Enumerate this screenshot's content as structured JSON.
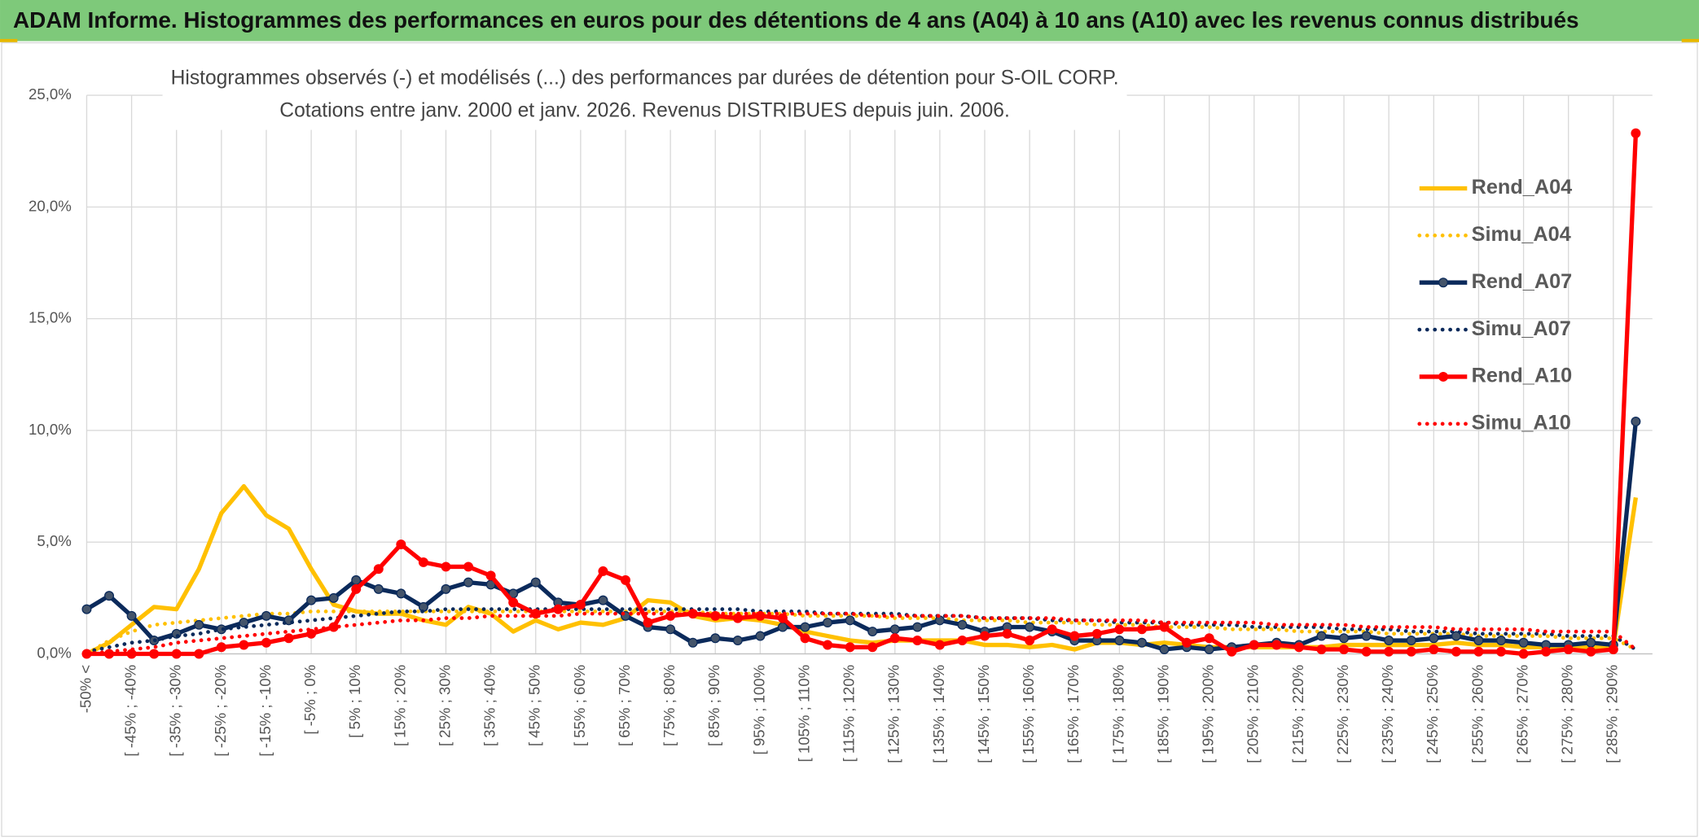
{
  "header": {
    "title": "ADAM Informe. Histogrammes des performances en euros pour des détentions de 4 ans (A04) à 10 ans (A10) avec les revenus connus distribués"
  },
  "chart_data": {
    "type": "line",
    "title": "Histogrammes observés (-) et modélisés (...) des performances par durées de détention pour S-OIL CORP.",
    "subtitle": "Cotations entre janv. 2000 et janv. 2026. Revenus DISTRIBUES depuis juin. 2006.",
    "categories": [
      "-50% <",
      null,
      "[ -45% ; -40%",
      null,
      "[ -35% ; -30%",
      null,
      "[ -25% ; -20%",
      null,
      "[ -15% ; -10%",
      null,
      "[ -5% ; 0%",
      null,
      "[ 5% ; 10%",
      null,
      "[ 15% ; 20%",
      null,
      "[ 25% ; 30%",
      null,
      "[ 35% ; 40%",
      null,
      "[ 45% ; 50%",
      null,
      "[ 55% ; 60%",
      null,
      "[ 65% ; 70%",
      null,
      "[ 75% ; 80%",
      null,
      "[ 85% ; 90%",
      null,
      "[ 95% ; 100%",
      null,
      "[ 105% ; 110%",
      null,
      "[ 115% ; 120%",
      null,
      "[ 125% ; 130%",
      null,
      "[ 135% ; 140%",
      null,
      "[ 145% ; 150%",
      null,
      "[ 155% ; 160%",
      null,
      "[ 165% ; 170%",
      null,
      "[ 175% ; 180%",
      null,
      "[ 185% ; 190%",
      null,
      "[ 195% ; 200%",
      null,
      "[ 205% ; 210%",
      null,
      "[ 215% ; 220%",
      null,
      "[ 225% ; 230%",
      null,
      "[ 235% ; 240%",
      null,
      "[ 245% ; 250%",
      null,
      "[ 255% ; 260%",
      null,
      "[ 265% ; 270%",
      null,
      "[ 275% ; 280%",
      null,
      "[ 285% ; 290%",
      null
    ],
    "series": [
      {
        "name": "Rend_A04",
        "color": "#ffc000",
        "style": "solid",
        "marker": false,
        "values": [
          0,
          0.5,
          1.3,
          2.1,
          2.0,
          3.8,
          6.3,
          7.5,
          6.2,
          5.6,
          3.8,
          2.2,
          1.9,
          1.8,
          1.8,
          1.5,
          1.3,
          2.1,
          1.8,
          1.0,
          1.5,
          1.1,
          1.4,
          1.3,
          1.6,
          2.4,
          2.3,
          1.7,
          1.5,
          1.6,
          1.5,
          1.3,
          1.0,
          0.8,
          0.6,
          0.5,
          0.6,
          0.6,
          0.6,
          0.6,
          0.4,
          0.4,
          0.3,
          0.4,
          0.2,
          0.5,
          0.5,
          0.4,
          0.5,
          0.4,
          0.3,
          0.3,
          0.3,
          0.3,
          0.3,
          0.3,
          0.4,
          0.4,
          0.4,
          0.4,
          0.4,
          0.5,
          0.4,
          0.4,
          0.3,
          0.3,
          0.3,
          0.3,
          0.3,
          7.0
        ]
      },
      {
        "name": "Simu_A04",
        "color": "#ffc000",
        "style": "dotted",
        "marker": false,
        "values": [
          0,
          0.6,
          1.0,
          1.3,
          1.4,
          1.5,
          1.6,
          1.7,
          1.8,
          1.8,
          1.9,
          1.9,
          1.9,
          1.9,
          1.9,
          1.9,
          1.9,
          1.9,
          1.9,
          1.9,
          1.9,
          1.9,
          1.9,
          1.9,
          1.9,
          1.9,
          1.9,
          1.9,
          1.8,
          1.8,
          1.8,
          1.8,
          1.7,
          1.7,
          1.7,
          1.7,
          1.6,
          1.6,
          1.6,
          1.5,
          1.5,
          1.5,
          1.4,
          1.4,
          1.4,
          1.3,
          1.3,
          1.3,
          1.2,
          1.2,
          1.2,
          1.1,
          1.1,
          1.1,
          1.0,
          1.0,
          1.0,
          1.0,
          0.9,
          0.9,
          0.9,
          0.9,
          0.8,
          0.8,
          0.8,
          0.8,
          0.7,
          0.7,
          0.7,
          0.2
        ]
      },
      {
        "name": "Rend_A07",
        "color": "#0b2a5b",
        "style": "solid",
        "marker": true,
        "values": [
          2.0,
          2.6,
          1.7,
          0.6,
          0.9,
          1.3,
          1.1,
          1.4,
          1.7,
          1.5,
          2.4,
          2.5,
          3.3,
          2.9,
          2.7,
          2.1,
          2.9,
          3.2,
          3.1,
          2.7,
          3.2,
          2.3,
          2.2,
          2.4,
          1.7,
          1.2,
          1.1,
          0.5,
          0.7,
          0.6,
          0.8,
          1.2,
          1.2,
          1.4,
          1.5,
          1.0,
          1.1,
          1.2,
          1.5,
          1.3,
          1.0,
          1.2,
          1.2,
          1.0,
          0.6,
          0.6,
          0.6,
          0.5,
          0.2,
          0.3,
          0.2,
          0.3,
          0.4,
          0.5,
          0.4,
          0.8,
          0.7,
          0.8,
          0.6,
          0.6,
          0.7,
          0.8,
          0.6,
          0.6,
          0.5,
          0.4,
          0.4,
          0.5,
          0.4,
          10.4
        ]
      },
      {
        "name": "Simu_A07",
        "color": "#0b2a5b",
        "style": "dotted",
        "marker": false,
        "values": [
          0.1,
          0.3,
          0.5,
          0.6,
          0.8,
          0.9,
          1.1,
          1.2,
          1.3,
          1.4,
          1.5,
          1.6,
          1.7,
          1.8,
          1.9,
          1.9,
          2.0,
          2.0,
          2.0,
          2.0,
          2.0,
          2.0,
          2.0,
          2.0,
          2.0,
          2.0,
          2.0,
          2.0,
          2.0,
          2.0,
          1.9,
          1.9,
          1.9,
          1.8,
          1.8,
          1.8,
          1.8,
          1.7,
          1.7,
          1.7,
          1.6,
          1.6,
          1.6,
          1.5,
          1.5,
          1.5,
          1.4,
          1.4,
          1.4,
          1.3,
          1.3,
          1.3,
          1.2,
          1.2,
          1.2,
          1.2,
          1.1,
          1.1,
          1.1,
          1.0,
          1.0,
          1.0,
          0.9,
          0.9,
          0.9,
          0.9,
          0.8,
          0.8,
          0.8,
          0.2
        ]
      },
      {
        "name": "Rend_A10",
        "color": "#ff0000",
        "style": "solid",
        "marker": true,
        "values": [
          0,
          0,
          0,
          0,
          0,
          0,
          0.3,
          0.4,
          0.5,
          0.7,
          0.9,
          1.2,
          2.9,
          3.8,
          4.9,
          4.1,
          3.9,
          3.9,
          3.5,
          2.3,
          1.8,
          2.0,
          2.2,
          3.7,
          3.3,
          1.4,
          1.7,
          1.8,
          1.7,
          1.6,
          1.7,
          1.6,
          0.7,
          0.4,
          0.3,
          0.3,
          0.7,
          0.6,
          0.4,
          0.6,
          0.8,
          0.9,
          0.6,
          1.1,
          0.8,
          0.9,
          1.1,
          1.1,
          1.2,
          0.5,
          0.7,
          0.1,
          0.4,
          0.4,
          0.3,
          0.2,
          0.2,
          0.1,
          0.1,
          0.1,
          0.2,
          0.1,
          0.1,
          0.1,
          0,
          0.1,
          0.2,
          0.1,
          0.2,
          23.3
        ]
      },
      {
        "name": "Simu_A10",
        "color": "#ff0000",
        "style": "dotted",
        "marker": false,
        "values": [
          0.0,
          0.1,
          0.2,
          0.3,
          0.5,
          0.6,
          0.7,
          0.8,
          0.9,
          1.0,
          1.1,
          1.2,
          1.3,
          1.4,
          1.5,
          1.5,
          1.6,
          1.6,
          1.7,
          1.7,
          1.7,
          1.7,
          1.8,
          1.8,
          1.8,
          1.8,
          1.8,
          1.8,
          1.8,
          1.8,
          1.8,
          1.8,
          1.8,
          1.8,
          1.8,
          1.7,
          1.7,
          1.7,
          1.7,
          1.7,
          1.6,
          1.6,
          1.6,
          1.6,
          1.5,
          1.5,
          1.5,
          1.5,
          1.4,
          1.4,
          1.4,
          1.4,
          1.4,
          1.3,
          1.3,
          1.3,
          1.3,
          1.2,
          1.2,
          1.2,
          1.2,
          1.1,
          1.1,
          1.1,
          1.1,
          1.0,
          1.0,
          1.0,
          1.0,
          0.2
        ]
      }
    ],
    "ylim": [
      0,
      25
    ],
    "yticks": [
      {
        "value": 0,
        "label": "0,0%"
      },
      {
        "value": 5,
        "label": "5,0%"
      },
      {
        "value": 10,
        "label": "10,0%"
      },
      {
        "value": 15,
        "label": "15,0%"
      },
      {
        "value": 20,
        "label": "20,0%"
      },
      {
        "value": 25,
        "label": "25,0%"
      }
    ],
    "grid": true,
    "legend": "right"
  }
}
